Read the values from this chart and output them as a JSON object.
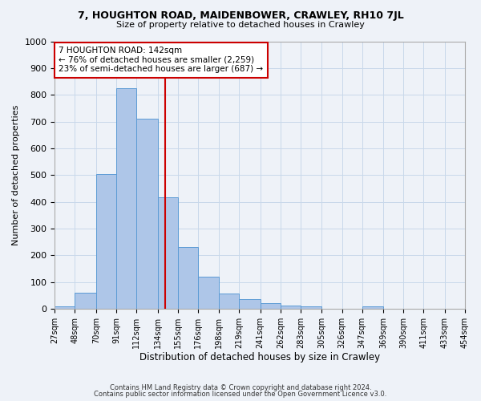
{
  "title": "7, HOUGHTON ROAD, MAIDENBOWER, CRAWLEY, RH10 7JL",
  "subtitle": "Size of property relative to detached houses in Crawley",
  "xlabel": "Distribution of detached houses by size in Crawley",
  "ylabel": "Number of detached properties",
  "bin_edges": [
    27,
    48,
    70,
    91,
    112,
    134,
    155,
    176,
    198,
    219,
    241,
    262,
    283,
    305,
    326,
    347,
    369,
    390,
    411,
    433,
    454
  ],
  "bar_heights": [
    8,
    60,
    505,
    825,
    712,
    418,
    230,
    120,
    57,
    37,
    20,
    12,
    10,
    0,
    0,
    9,
    0,
    0,
    0,
    0
  ],
  "bar_color": "#aec6e8",
  "bar_edge_color": "#5b9bd5",
  "vline_x": 142,
  "vline_color": "#cc0000",
  "ylim": [
    0,
    1000
  ],
  "yticks": [
    0,
    100,
    200,
    300,
    400,
    500,
    600,
    700,
    800,
    900,
    1000
  ],
  "annotation_title": "7 HOUGHTON ROAD: 142sqm",
  "annotation_line1": "← 76% of detached houses are smaller (2,259)",
  "annotation_line2": "23% of semi-detached houses are larger (687) →",
  "annotation_box_color": "#ffffff",
  "annotation_box_edge": "#cc0000",
  "grid_color": "#c8d8ea",
  "bg_color": "#eef2f8",
  "footer1": "Contains HM Land Registry data © Crown copyright and database right 2024.",
  "footer2": "Contains public sector information licensed under the Open Government Licence v3.0."
}
